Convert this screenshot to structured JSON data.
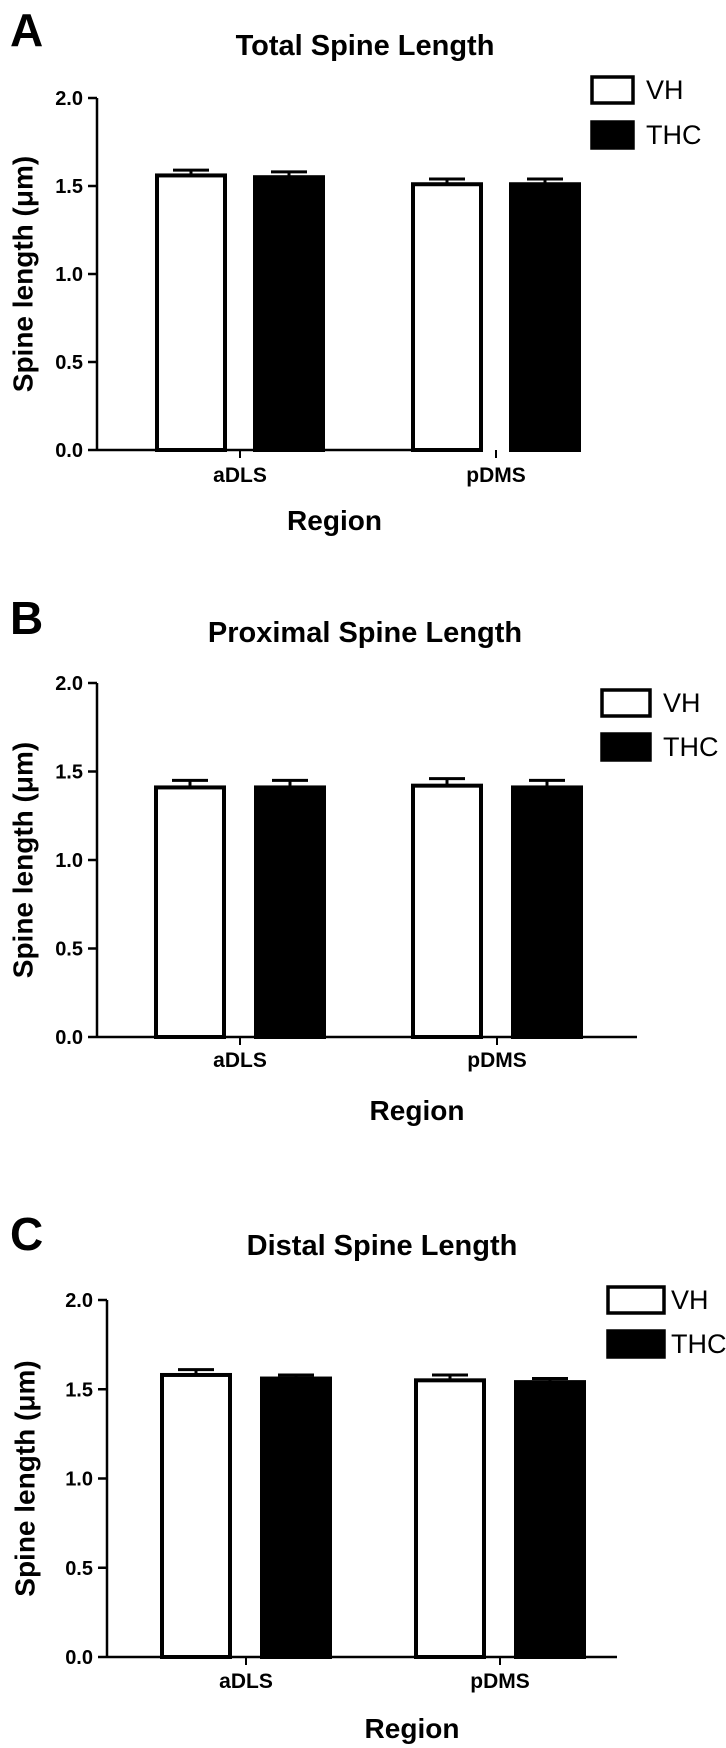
{
  "colors": {
    "vh_fill": "#ffffff",
    "thc_fill": "#000000",
    "stroke": "#000000"
  },
  "chart_data": [
    {
      "panel": "A",
      "type": "bar",
      "title": "Total Spine Length",
      "xlabel": "Region",
      "ylabel": "Spine length (μm)",
      "ylim": [
        0,
        2.0
      ],
      "yticks": [
        "0.0",
        "0.5",
        "1.0",
        "1.5",
        "2.0"
      ],
      "categories": [
        "aDLS",
        "pDMS"
      ],
      "series": [
        {
          "name": "VH",
          "values": [
            1.56,
            1.51
          ],
          "errors": [
            0.03,
            0.03
          ]
        },
        {
          "name": "THC",
          "values": [
            1.55,
            1.51
          ],
          "errors": [
            0.03,
            0.03
          ]
        }
      ],
      "legend": "top-right",
      "grid": false
    },
    {
      "panel": "B",
      "type": "bar",
      "title": "Proximal  Spine Length",
      "xlabel": "Region",
      "ylabel": "Spine length (μm)",
      "ylim": [
        0,
        2.0
      ],
      "yticks": [
        "0.0",
        "0.5",
        "1.0",
        "1.5",
        "2.0"
      ],
      "categories": [
        "aDLS",
        "pDMS"
      ],
      "series": [
        {
          "name": "VH",
          "values": [
            1.41,
            1.42
          ],
          "errors": [
            0.04,
            0.04
          ]
        },
        {
          "name": "THC",
          "values": [
            1.41,
            1.41
          ],
          "errors": [
            0.04,
            0.04
          ]
        }
      ],
      "legend": "top-right",
      "grid": false
    },
    {
      "panel": "C",
      "type": "bar",
      "title": "Distal Spine Length",
      "xlabel": "Region",
      "ylabel": "Spine length (μm)",
      "ylim": [
        0,
        2.0
      ],
      "yticks": [
        "0.0",
        "0.5",
        "1.0",
        "1.5",
        "2.0"
      ],
      "categories": [
        "aDLS",
        "pDMS"
      ],
      "series": [
        {
          "name": "VH",
          "values": [
            1.58,
            1.55
          ],
          "errors": [
            0.03,
            0.03
          ]
        },
        {
          "name": "THC",
          "values": [
            1.56,
            1.54
          ],
          "errors": [
            0.02,
            0.02
          ]
        }
      ],
      "legend": "top-right",
      "grid": false
    }
  ]
}
